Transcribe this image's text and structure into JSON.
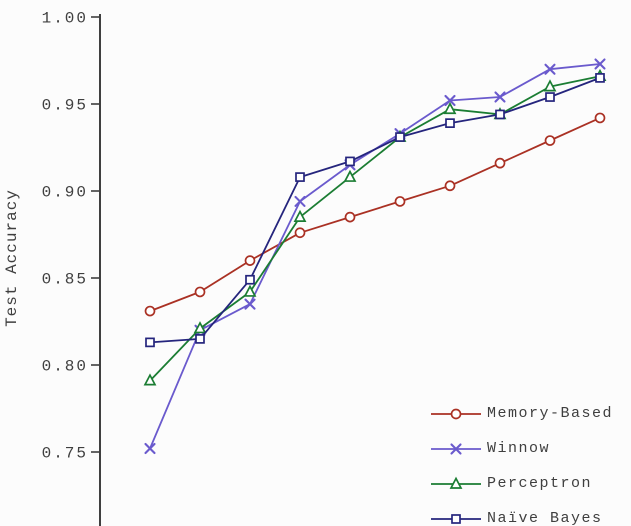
{
  "chart_data": {
    "type": "line",
    "title": "",
    "xlabel": "",
    "ylabel": "Test Accuracy",
    "ylim": [
      0.705,
      1.0
    ],
    "yticks": [
      1.0,
      0.95,
      0.9,
      0.85,
      0.8,
      0.75
    ],
    "ytick_labels": [
      "1.00",
      "0.95",
      "0.90",
      "0.85",
      "0.80",
      "0.75"
    ],
    "x_index": [
      1,
      2,
      3,
      4,
      5,
      6,
      7,
      8,
      9,
      10
    ],
    "xtick_labels": [],
    "grid": false,
    "legend_position": "lower right",
    "series": [
      {
        "name": "Memory-Based",
        "color": "#aa3124",
        "marker": "circle",
        "values": [
          0.831,
          0.842,
          0.86,
          0.876,
          0.885,
          0.894,
          0.903,
          0.916,
          0.929,
          0.942
        ]
      },
      {
        "name": "Winnow",
        "color": "#6a5acd",
        "marker": "x",
        "values": [
          0.752,
          0.82,
          0.835,
          0.894,
          0.915,
          0.933,
          0.952,
          0.954,
          0.97,
          0.973
        ]
      },
      {
        "name": "Perceptron",
        "color": "#1b7d33",
        "marker": "triangle",
        "values": [
          0.791,
          0.821,
          0.842,
          0.885,
          0.908,
          0.931,
          0.947,
          0.944,
          0.96,
          0.966
        ]
      },
      {
        "name": "Naïve Bayes",
        "color": "#25257d",
        "marker": "square",
        "values": [
          0.813,
          0.815,
          0.849,
          0.908,
          0.917,
          0.931,
          0.939,
          0.944,
          0.954,
          0.965
        ]
      }
    ]
  }
}
